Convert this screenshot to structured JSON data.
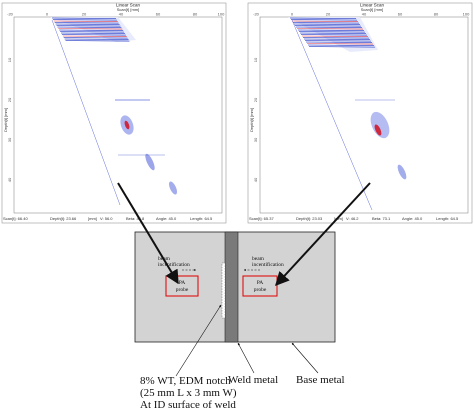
{
  "scan_left": {
    "title": "Linear Scan",
    "axis_top": "Scan[t] [mm]",
    "axis_left": "Depth[t] [mm]",
    "top_ticks": [
      "-20",
      "0",
      "20",
      "40",
      "60",
      "80",
      "100"
    ],
    "left_ticks": [
      "10",
      "20",
      "30",
      "40"
    ],
    "readouts": [
      "Scan[t]: 66.40",
      "Depth[t]: 23.66",
      "[mm]",
      "V: 56.0",
      "Beta: 44.8",
      "Angle: 45.0",
      "Length: 64.5"
    ]
  },
  "scan_right": {
    "title": "Linear Scan",
    "axis_top": "Scan[t] [mm]",
    "axis_left": "Depth[t] [mm]",
    "top_ticks": [
      "-20",
      "0",
      "20",
      "40",
      "60",
      "80",
      "100"
    ],
    "left_ticks": [
      "10",
      "20",
      "30",
      "40"
    ],
    "readouts": [
      "Scan[t]: 65.37",
      "Depth[t]: 23.03",
      "[mm]",
      "V: 46.2",
      "Beta: 73.1",
      "Angle: 45.0",
      "Length: 64.5"
    ]
  },
  "schematic": {
    "left_beam_label": [
      "beam",
      "incentification"
    ],
    "right_beam_label": [
      "beam",
      "incentification"
    ],
    "left_probe_label": [
      "PA",
      "probe"
    ],
    "right_probe_label": [
      "PA",
      "probe"
    ]
  },
  "captions": {
    "notch": [
      "8% WT, EDM notch",
      "(25 mm L x 3 mm W)",
      "At ID surface of weld"
    ],
    "weld_metal": "Weld metal",
    "base_metal": "Base metal"
  },
  "colors": {
    "plate": "#d3d3d3",
    "weld": "#7a7a7a",
    "probe_border": "#e01010",
    "scan_signal": "#2a3fc8",
    "scan_hot": "#d2182a"
  }
}
